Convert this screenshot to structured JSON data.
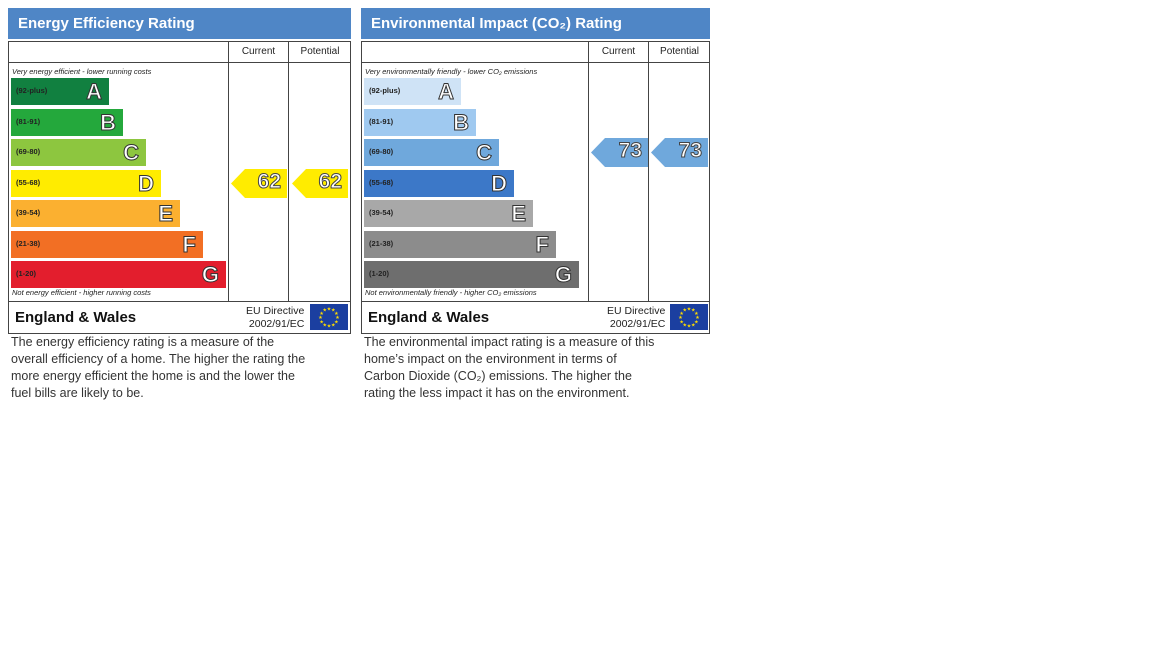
{
  "chart_data": [
    {
      "type": "bar",
      "title": "Energy Efficiency Rating",
      "columns": [
        "Current",
        "Potential"
      ],
      "top_note": "Very energy efficient - lower running costs",
      "bottom_note": "Not energy efficient - higher running costs",
      "bands": [
        {
          "letter": "A",
          "range": "(92-plus)",
          "color": "#118040"
        },
        {
          "letter": "B",
          "range": "(81-91)",
          "color": "#24a83c"
        },
        {
          "letter": "C",
          "range": "(69-80)",
          "color": "#8dc63f"
        },
        {
          "letter": "D",
          "range": "(55-68)",
          "color": "#ffec00"
        },
        {
          "letter": "E",
          "range": "(39-54)",
          "color": "#fbb030"
        },
        {
          "letter": "F",
          "range": "(21-38)",
          "color": "#f26f24"
        },
        {
          "letter": "G",
          "range": "(1-20)",
          "color": "#e31e2d"
        }
      ],
      "current": {
        "value": 62,
        "label": "62",
        "band": "D",
        "color": "#ffec00"
      },
      "potential": {
        "value": 62,
        "label": "62",
        "band": "D",
        "color": "#ffec00"
      },
      "footer": {
        "region": "England & Wales",
        "directive_line1": "EU Directive",
        "directive_line2": "2002/91/EC"
      },
      "description_lines": [
        "The energy efficiency rating is a measure of the",
        "overall efficiency of a home. The higher the rating the",
        "more energy efficient the home is and the lower the",
        "fuel bills are likely to be."
      ]
    },
    {
      "type": "bar",
      "title": "Environmental Impact (CO₂) Rating",
      "columns": [
        "Current",
        "Potential"
      ],
      "top_note": "Very environmentally friendly - lower CO₂ emissions",
      "bottom_note": "Not environmentally friendly - higher CO₂ emissions",
      "bands": [
        {
          "letter": "A",
          "range": "(92-plus)",
          "color": "#cfe3f6"
        },
        {
          "letter": "B",
          "range": "(81-91)",
          "color": "#9fc9f0"
        },
        {
          "letter": "C",
          "range": "(69-80)",
          "color": "#6fa8dc"
        },
        {
          "letter": "D",
          "range": "(55-68)",
          "color": "#3c78c8"
        },
        {
          "letter": "E",
          "range": "(39-54)",
          "color": "#a8a8a8"
        },
        {
          "letter": "F",
          "range": "(21-38)",
          "color": "#8c8c8c"
        },
        {
          "letter": "G",
          "range": "(1-20)",
          "color": "#6e6e6e"
        }
      ],
      "current": {
        "value": 73,
        "label": "73",
        "band": "C",
        "color": "#6fa8dc"
      },
      "potential": {
        "value": 73,
        "label": "73",
        "band": "C",
        "color": "#6fa8dc"
      },
      "footer": {
        "region": "England & Wales",
        "directive_line1": "EU Directive",
        "directive_line2": "2002/91/EC"
      },
      "description_lines": [
        "The environmental impact rating is a measure of this",
        "home’s impact on the environment in terms of",
        "Carbon Dioxide (CO₂) emissions. The higher the",
        "rating the less impact it has on the environment."
      ]
    }
  ]
}
